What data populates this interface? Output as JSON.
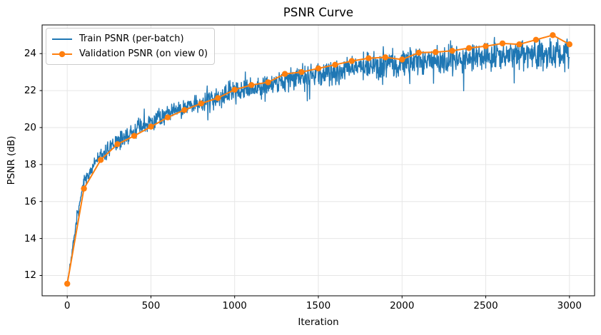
{
  "figure": {
    "title": "PSNR Curve",
    "xlabel": "Iteration",
    "ylabel": "PSNR (dB)"
  },
  "legend": {
    "position": "upper left",
    "items": [
      {
        "label": "Train PSNR (per-batch)",
        "color": "#1f77b4",
        "marker": "none"
      },
      {
        "label": "Validation PSNR (on view 0)",
        "color": "#ff7f0e",
        "marker": "circle"
      }
    ]
  },
  "chart_data": {
    "type": "line",
    "title": "PSNR Curve",
    "xlabel": "Iteration",
    "ylabel": "PSNR (dB)",
    "xlim": [
      -150,
      3150
    ],
    "ylim": [
      10.9,
      25.55
    ],
    "xticks": [
      0,
      500,
      1000,
      1500,
      2000,
      2500,
      3000
    ],
    "yticks": [
      12,
      14,
      16,
      18,
      20,
      22,
      24
    ],
    "grid": true,
    "grid_color": "#e6e6e6",
    "spine_color": "#000000",
    "legend_position": "upper left",
    "series": [
      {
        "name": "Train PSNR (per-batch)",
        "type": "noisy-line",
        "color": "#1f77b4",
        "line_width": 1.4,
        "x_range": [
          0,
          3000
        ],
        "x_step": 2,
        "seed": 7,
        "trend_keypoints": [
          [
            0,
            11.6
          ],
          [
            30,
            13.3
          ],
          [
            60,
            15.2
          ],
          [
            100,
            17.0
          ],
          [
            150,
            17.9
          ],
          [
            200,
            18.45
          ],
          [
            250,
            18.85
          ],
          [
            300,
            19.2
          ],
          [
            400,
            19.8
          ],
          [
            500,
            20.3
          ],
          [
            600,
            20.8
          ],
          [
            700,
            21.1
          ],
          [
            800,
            21.4
          ],
          [
            900,
            21.7
          ],
          [
            1000,
            21.95
          ],
          [
            1100,
            22.15
          ],
          [
            1200,
            22.35
          ],
          [
            1300,
            22.55
          ],
          [
            1400,
            22.75
          ],
          [
            1500,
            22.9
          ],
          [
            1600,
            23.05
          ],
          [
            1700,
            23.2
          ],
          [
            1800,
            23.35
          ],
          [
            1900,
            23.45
          ],
          [
            2000,
            23.5
          ],
          [
            2100,
            23.6
          ],
          [
            2200,
            23.65
          ],
          [
            2300,
            23.72
          ],
          [
            2400,
            23.8
          ],
          [
            2500,
            23.85
          ],
          [
            2600,
            23.9
          ],
          [
            2700,
            23.95
          ],
          [
            2800,
            24.0
          ],
          [
            2900,
            24.05
          ],
          [
            3000,
            24.0
          ]
        ],
        "noise_amplitude_keypoints": [
          [
            0,
            0.06
          ],
          [
            50,
            0.15
          ],
          [
            100,
            0.22
          ],
          [
            300,
            0.28
          ],
          [
            600,
            0.32
          ],
          [
            1000,
            0.36
          ],
          [
            1500,
            0.42
          ],
          [
            2000,
            0.46
          ],
          [
            2500,
            0.48
          ],
          [
            3000,
            0.5
          ]
        ],
        "noise": {
          "gauss_scale": 1.6,
          "down_spike_prob": 0.015,
          "down_spike_range": [
            1.2,
            3.0
          ],
          "up_spike_prob": 0.012,
          "up_spike_range": [
            1.0,
            1.8
          ]
        }
      },
      {
        "name": "Validation PSNR (on view 0)",
        "type": "line-markers",
        "color": "#ff7f0e",
        "line_width": 2,
        "marker_size": 8.4,
        "x": [
          0,
          100,
          200,
          300,
          400,
          500,
          600,
          700,
          800,
          900,
          1000,
          1100,
          1200,
          1300,
          1400,
          1500,
          1600,
          1700,
          1800,
          1900,
          2000,
          2100,
          2200,
          2300,
          2400,
          2500,
          2600,
          2700,
          2800,
          2900,
          3000
        ],
        "values": [
          11.55,
          16.7,
          18.25,
          19.1,
          19.55,
          20.05,
          20.55,
          20.95,
          21.3,
          21.6,
          22.05,
          22.3,
          22.45,
          22.9,
          23.0,
          23.2,
          23.4,
          23.6,
          23.75,
          23.8,
          23.68,
          24.05,
          24.08,
          24.15,
          24.3,
          24.4,
          24.55,
          24.5,
          24.75,
          25.0,
          24.5
        ]
      }
    ]
  }
}
